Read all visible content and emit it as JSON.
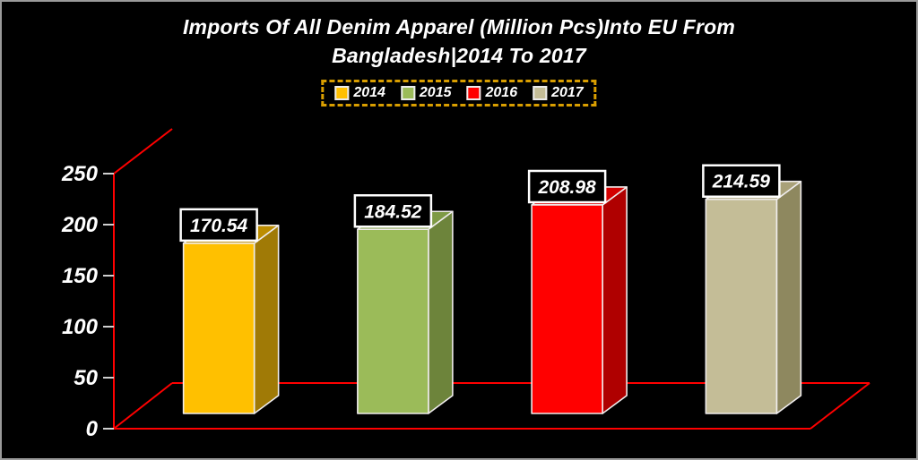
{
  "window": {
    "background": "#000000",
    "border_color": "#9a9a9a"
  },
  "title": {
    "line1": "Imports Of All Denim Apparel (Million Pcs)Into EU From",
    "line2": "Bangladesh|2014 To 2017"
  },
  "legend": {
    "border_color": "#D99E00",
    "items": [
      {
        "label": "2014",
        "color": "#FFC000"
      },
      {
        "label": "2015",
        "color": "#9BBB59"
      },
      {
        "label": "2016",
        "color": "#FF0000"
      },
      {
        "label": "2017",
        "color": "#C4BD97"
      }
    ]
  },
  "chart_data": {
    "type": "bar",
    "style": "3d",
    "title": "Imports Of All Denim Apparel (Million Pcs)Into EU From Bangladesh|2014 To 2017",
    "categories": [
      "2014",
      "2015",
      "2016",
      "2017"
    ],
    "values": [
      170.54,
      184.52,
      208.98,
      214.59
    ],
    "data_labels": [
      "170.54",
      "184.52",
      "208.98",
      "214.59"
    ],
    "xlabel": "",
    "ylabel": "",
    "ylim": [
      0,
      250
    ],
    "yticks": [
      0,
      50,
      100,
      150,
      200,
      250
    ],
    "grid": false,
    "legend_position": "top",
    "background": "#000000",
    "axis_frame_color": "#FF0000",
    "tick_color": "#CFCFCF",
    "text_color": "#FFFFFF",
    "value_label_box": {
      "fill": "#000000",
      "border": "#FFFFFF"
    },
    "bar_outline_color": "#EFECEC",
    "bar_colors": [
      {
        "front": "#FFC000",
        "top": "#BC8D00",
        "side": "#A07A06"
      },
      {
        "front": "#9BBB59",
        "top": "#7E9A45",
        "side": "#6D843B"
      },
      {
        "front": "#FF0000",
        "top": "#D40000",
        "side": "#AF0000"
      },
      {
        "front": "#C4BD97",
        "top": "#A9A178",
        "side": "#8E885F"
      }
    ]
  }
}
